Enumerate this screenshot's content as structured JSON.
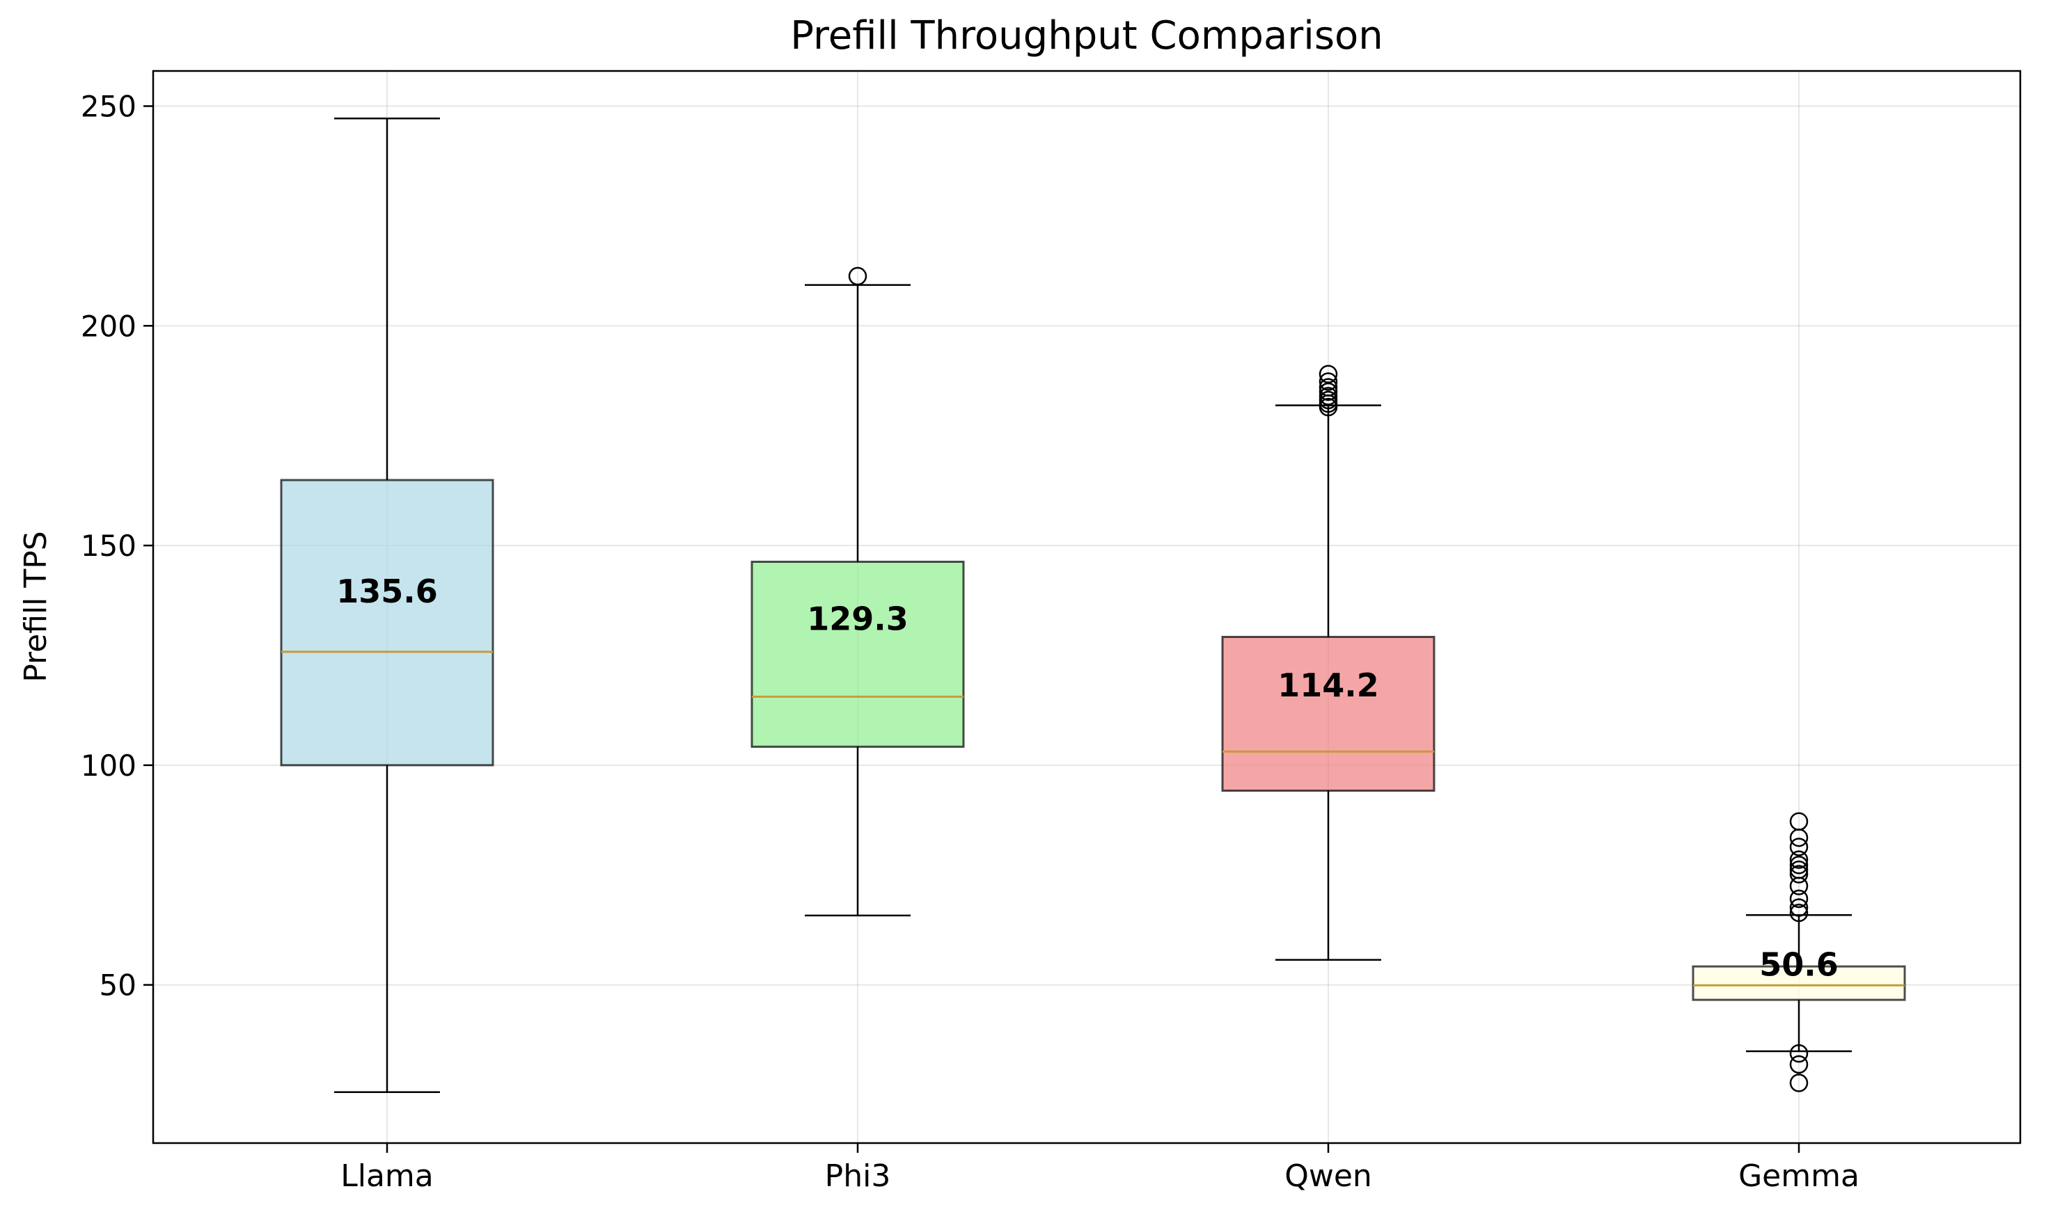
{
  "chart_data": {
    "type": "box",
    "title": "Prefill Throughput Comparison",
    "xlabel": "",
    "ylabel": "Prefill TPS",
    "ylim": [
      14,
      258
    ],
    "yticks": [
      50,
      100,
      150,
      200,
      250
    ],
    "grid": true,
    "categories": [
      "Llama",
      "Phi3",
      "Qwen",
      "Gemma"
    ],
    "boxes": [
      {
        "name": "Llama",
        "color": "#add8e6",
        "whisker_low": 25.6,
        "q1": 100.0,
        "median": 125.8,
        "q3": 164.9,
        "whisker_high": 247.2,
        "mean_label": "135.6",
        "outliers": []
      },
      {
        "name": "Phi3",
        "color": "#90ee90",
        "whisker_low": 65.8,
        "q1": 104.2,
        "median": 115.6,
        "q3": 146.3,
        "whisker_high": 209.3,
        "mean_label": "129.3",
        "outliers": [
          211.3
        ]
      },
      {
        "name": "Qwen",
        "color": "#f08080",
        "whisker_low": 55.7,
        "q1": 94.2,
        "median": 103.1,
        "q3": 129.2,
        "whisker_high": 181.9,
        "mean_label": "114.2",
        "outliers": [
          181.5,
          182.3,
          183.1,
          184.0,
          185.0,
          186.0,
          187.3,
          189.0
        ]
      },
      {
        "name": "Gemma",
        "color": "#ffffe0",
        "whisker_low": 34.9,
        "q1": 46.6,
        "median": 49.9,
        "q3": 54.2,
        "whisker_high": 65.9,
        "mean_label": "50.6",
        "outliers": [
          27.7,
          31.9,
          34.4,
          66.4,
          67.6,
          69.6,
          72.5,
          75.2,
          76.2,
          77.3,
          78.5,
          81.4,
          83.5,
          87.2
        ]
      }
    ]
  }
}
